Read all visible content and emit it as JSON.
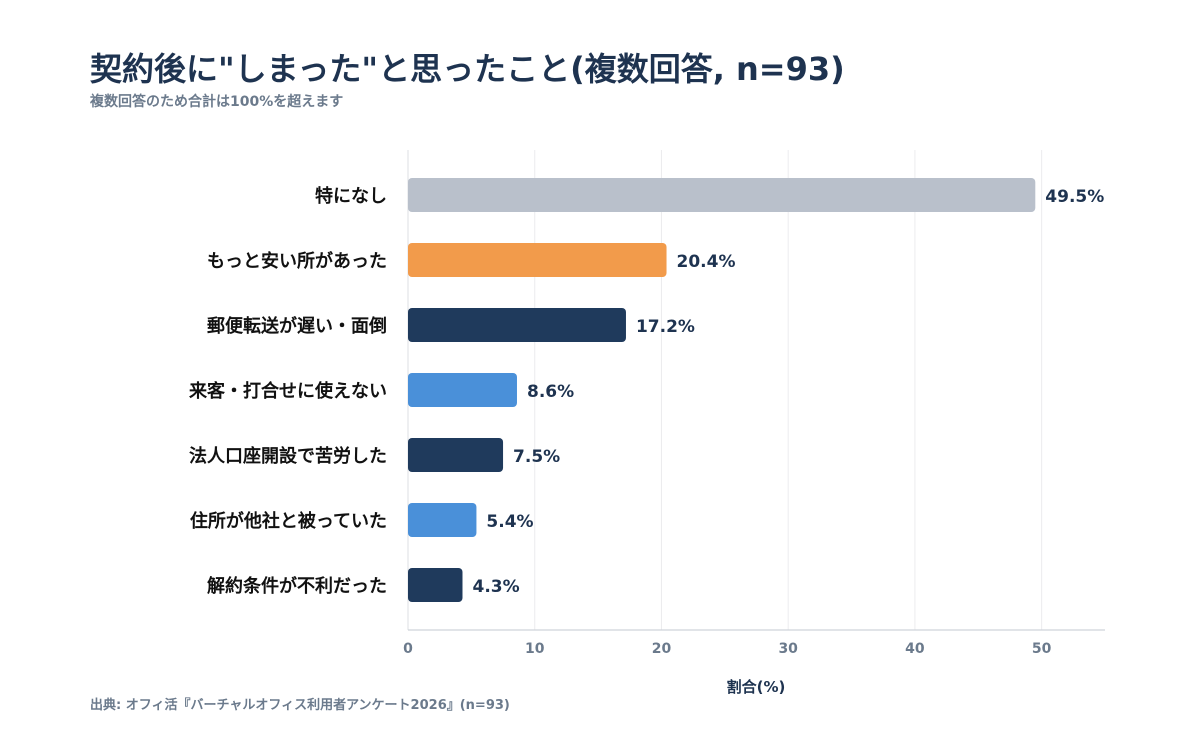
{
  "header": {
    "title": "契約後に\"しまった\"と思ったこと(複数回答, n=93)",
    "subtitle": "複数回答のため合計は100%を超えます"
  },
  "footer": {
    "source": "出典: オフィ活『バーチャルオフィス利用者アンケート2026』(n=93)"
  },
  "chart_data": {
    "type": "bar",
    "orientation": "horizontal",
    "title": "契約後に\"しまった\"と思ったこと(複数回答, n=93)",
    "subtitle": "複数回答のため合計は100%を超えます",
    "xlabel": "割合(%)",
    "ylabel": "",
    "xlim": [
      0,
      55
    ],
    "xticks": [
      0,
      10,
      20,
      30,
      40,
      50
    ],
    "grid": "vertical",
    "legend": "none",
    "categories": [
      "特になし",
      "もっと安い所があった",
      "郵便転送が遅い・面倒",
      "来客・打合せに使えない",
      "法人口座開設で苦労した",
      "住所が他社と被っていた",
      "解約条件が不利だった"
    ],
    "values": [
      49.5,
      20.4,
      17.2,
      8.6,
      7.5,
      5.4,
      4.3
    ],
    "value_labels": [
      "49.5%",
      "20.4%",
      "17.2%",
      "8.6%",
      "7.5%",
      "5.4%",
      "4.3%"
    ],
    "colors": [
      "#b9c0cb",
      "#f29b4b",
      "#1f3a5c",
      "#4a90d9",
      "#1f3a5c",
      "#4a90d9",
      "#1f3a5c"
    ]
  }
}
